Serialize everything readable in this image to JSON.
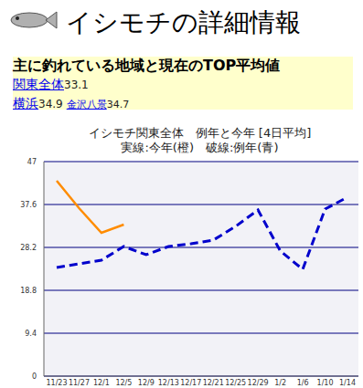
{
  "header": {
    "title": "イシモチの詳細情報"
  },
  "summary": {
    "heading": "主に釣れている地域と現在のTOP平均値",
    "lines": [
      [
        {
          "name": "関東全体",
          "value": 33.1
        }
      ],
      [
        {
          "name": "横浜",
          "value": 34.9
        },
        {
          "name": "金沢八景",
          "value": 34.7
        }
      ]
    ]
  },
  "chart_data": {
    "type": "line",
    "title": "イシモチ関東全体　例年と今年 [4日平均]",
    "subtitle": "実線:今年(橙)　破線:例年(青)",
    "categories": [
      "11/23",
      "11/27",
      "12/1",
      "12/5",
      "12/9",
      "12/13",
      "12/17",
      "12/21",
      "12/25",
      "12/29",
      "1/2",
      "1/6",
      "1/10",
      "1/14"
    ],
    "series": [
      {
        "name": "今年",
        "color": "#ff8c00",
        "line_style": "solid",
        "values": [
          42.8,
          36.8,
          31.4,
          33.2,
          null,
          null,
          null,
          null,
          null,
          null,
          null,
          null,
          null,
          null
        ]
      },
      {
        "name": "例年",
        "color": "#0000cc",
        "line_style": "dashed",
        "values": [
          23.8,
          24.6,
          25.4,
          28.4,
          26.6,
          28.4,
          29.0,
          29.8,
          32.8,
          36.4,
          27.4,
          23.4,
          36.6,
          39.2
        ]
      }
    ],
    "ylim": [
      0,
      47
    ],
    "yticks": [
      0,
      9.4,
      18.8,
      28.2,
      37.6,
      47
    ],
    "grid": true
  }
}
